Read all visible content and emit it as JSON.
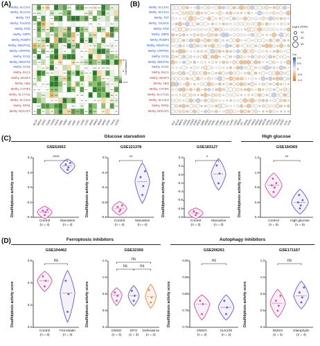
{
  "panels": {
    "a": "(A)",
    "b": "(B)",
    "c": "(C)",
    "d": "(D)"
  },
  "rows": [
    {
      "label": "Methy. SLC2A1",
      "color": "blue"
    },
    {
      "label": "Methy. SLC2A1",
      "color": "blue"
    },
    {
      "label": "Methy. TKT",
      "color": "blue"
    },
    {
      "label": "Methy. TALDO1",
      "color": "blue"
    },
    {
      "label": "Methy. PGD",
      "color": "blue"
    },
    {
      "label": "Methy. G6PD",
      "color": "blue"
    },
    {
      "label": "Methy. RUBP4",
      "color": "blue"
    },
    {
      "label": "Methy. NDUFA11",
      "color": "blue"
    },
    {
      "label": "Methy. LRPPRC",
      "color": "blue"
    },
    {
      "label": "Methy. GYS1",
      "color": "blue"
    },
    {
      "label": "Methy. NDUFS1",
      "color": "blue"
    },
    {
      "label": "Methy. GYS1",
      "color": "blue"
    },
    {
      "label": "Methy. RAC1",
      "color": "red"
    },
    {
      "label": "Methy. WASF2",
      "color": "red"
    },
    {
      "label": "Methy. ABI2",
      "color": "red"
    },
    {
      "label": "Methy. CYFIP1",
      "color": "red"
    },
    {
      "label": "Methy. SLC7A11",
      "color": "red"
    },
    {
      "label": "Methy. SLC3A2",
      "color": "red"
    },
    {
      "label": "Methy. RPN1",
      "color": "red"
    },
    {
      "label": "Methy. NCKAP1",
      "color": "red"
    }
  ],
  "heatmap_cols": [
    "BLCA",
    "BRCA",
    "CESC",
    "CHOL",
    "COAD",
    "ESCA",
    "GBM",
    "HNSC",
    "KIRC",
    "KIRP",
    "LIHC",
    "LUAD",
    "LUSC",
    "PAAD",
    "PRAD",
    "READ",
    "SARC",
    "STAD",
    "THCA",
    "UCEC"
  ],
  "dot_cols": [
    "ACC",
    "BLCA",
    "BRCA",
    "CESC",
    "CHOL",
    "COAD",
    "DLBC",
    "ESCA",
    "GBM",
    "HNSC",
    "KICH",
    "KIRC",
    "KIRP",
    "LAML",
    "LGG",
    "LIHC",
    "LUAD",
    "LUSC",
    "MESO",
    "OV",
    "PAAD",
    "PCPG",
    "PRAD",
    "READ",
    "SARC",
    "SKCM",
    "STAD",
    "TGCT",
    "THCA",
    "THYM",
    "UCEC",
    "UCS",
    "UVM"
  ],
  "heatmap_legend": {
    "title": "Correlation",
    "ticks": [
      "0.4",
      "0.2",
      "0",
      "-0.2",
      "-0.4"
    ]
  },
  "dot_legend": {
    "size_title": "-log10 (FDR)",
    "size_ticks": [
      "10",
      "20",
      "30"
    ],
    "color_title": "Cor",
    "color_ticks": [
      "1.0",
      "0.5",
      "0",
      "-0.5",
      "-1.0"
    ]
  },
  "sections": {
    "glucose_starvation": "Glucose starvation",
    "high_glucose": "High glucose",
    "ferroptosis": "Ferroptosis inhibitors",
    "autophagy": "Autophagy inhibitors"
  },
  "y_axis_label": "Disulfidptosis activity score",
  "colors": {
    "pink": "#e0479b",
    "purple": "#5b5bd6",
    "orange": "#f08a24",
    "blue": "#3a6fd8",
    "fill_light": "#f6f0f8"
  },
  "plots": [
    {
      "title": "GSE62663",
      "sig": "****",
      "yticks": [
        "0.4",
        "0.2",
        "0.0",
        "-0.2",
        "-0.4"
      ],
      "groups": [
        {
          "name": "Control",
          "n": "(n = 4)",
          "mean": -0.33,
          "points": [
            -0.37,
            -0.33,
            -0.31,
            -0.3
          ]
        },
        {
          "name": "Starvation",
          "n": "(n = 4)",
          "mean": 0.29,
          "points": [
            0.24,
            0.27,
            0.31,
            0.33
          ]
        }
      ]
    },
    {
      "title": "GSE121378",
      "sig": "**",
      "yticks": [
        "0.0",
        "-0.2",
        "-0.4",
        "-0.6",
        "-0.8"
      ],
      "groups": [
        {
          "name": "Control",
          "n": "(n = 4)",
          "mean": -0.68,
          "points": [
            -0.72,
            -0.7,
            -0.66,
            -0.64
          ]
        },
        {
          "name": "Starvation",
          "n": "(n = 4)",
          "mean": -0.32,
          "points": [
            -0.5,
            -0.38,
            -0.26,
            -0.18
          ]
        }
      ]
    },
    {
      "title": "GSE183127",
      "sig": "*",
      "yticks": [
        "0.4",
        "0.2",
        "0.0",
        "-0.2",
        "-0.4",
        "-0.6",
        "-0.8",
        "-1.0"
      ],
      "groups": [
        {
          "name": "Control",
          "n": "(n = 3)",
          "mean": -0.9,
          "points": [
            -0.95,
            -0.9,
            -0.86
          ]
        },
        {
          "name": "Starvation",
          "n": "(n = 3)",
          "mean": 0.02,
          "points": [
            -0.2,
            0.03,
            0.22
          ]
        }
      ]
    },
    {
      "title": "GSE194369",
      "sig": "**",
      "yticks": [
        "1.2",
        "1.0",
        "0.8",
        "0.6",
        "0.4"
      ],
      "groups": [
        {
          "name": "Control",
          "n": "(n = 5)",
          "mean": 0.83,
          "points": [
            0.74,
            0.8,
            0.83,
            0.86,
            0.92
          ]
        },
        {
          "name": "High glucose",
          "n": "(n = 5)",
          "mean": 0.6,
          "points": [
            0.52,
            0.56,
            0.6,
            0.63,
            0.7
          ]
        }
      ]
    },
    {
      "title": "GSE104462",
      "sig": "ns",
      "yticks": [
        "0.6",
        "0.4",
        "0.2",
        "0.0"
      ],
      "groups": [
        {
          "name": "Control",
          "n": "(n = 3)",
          "mean": 0.42,
          "points": [
            0.37,
            0.42,
            0.46
          ]
        },
        {
          "name": "Ferrostatin",
          "n": "(n = 3)",
          "mean": 0.31,
          "points": [
            0.14,
            0.3,
            0.42
          ]
        }
      ]
    },
    {
      "title": "GSE32369",
      "sig": "ns",
      "yticks": [
        "1.2",
        "1.0",
        "0.8",
        "0.6",
        "0.4"
      ],
      "groups": [
        {
          "name": "DMSO",
          "n": "(n = 3)",
          "mean": 0.79,
          "points": [
            0.72,
            0.78,
            0.82
          ]
        },
        {
          "name": "DFO",
          "n": "(n = 3)",
          "mean": 0.78,
          "points": [
            0.72,
            0.78,
            0.84
          ]
        },
        {
          "name": "Deferasirox",
          "n": "(n = 3)",
          "mean": 0.77,
          "points": [
            0.7,
            0.76,
            0.85
          ]
        }
      ]
    },
    {
      "title": "GSE206261",
      "sig": "ns",
      "yticks": [
        "0.90",
        "0.85",
        "0.80",
        "0.75",
        "0.70"
      ],
      "groups": [
        {
          "name": "DMSO",
          "n": "(n = 3)",
          "mean": 0.77,
          "points": [
            0.74,
            0.77,
            0.78
          ]
        },
        {
          "name": "ULK100",
          "n": "(n = 3)",
          "mean": 0.76,
          "points": [
            0.74,
            0.76,
            0.78
          ]
        }
      ]
    },
    {
      "title": "GSE171167",
      "sig": "ns",
      "yticks": [
        "1.2",
        "1.0",
        "0.8",
        "0.6",
        "0.4"
      ],
      "groups": [
        {
          "name": "DMSO",
          "n": "(n = 4)",
          "mean": 0.69,
          "points": [
            0.6,
            0.66,
            0.72,
            0.78
          ]
        },
        {
          "name": "Elaiophylin",
          "n": "(n = 4)",
          "mean": 0.78,
          "points": [
            0.7,
            0.76,
            0.82,
            0.88
          ]
        }
      ]
    }
  ]
}
